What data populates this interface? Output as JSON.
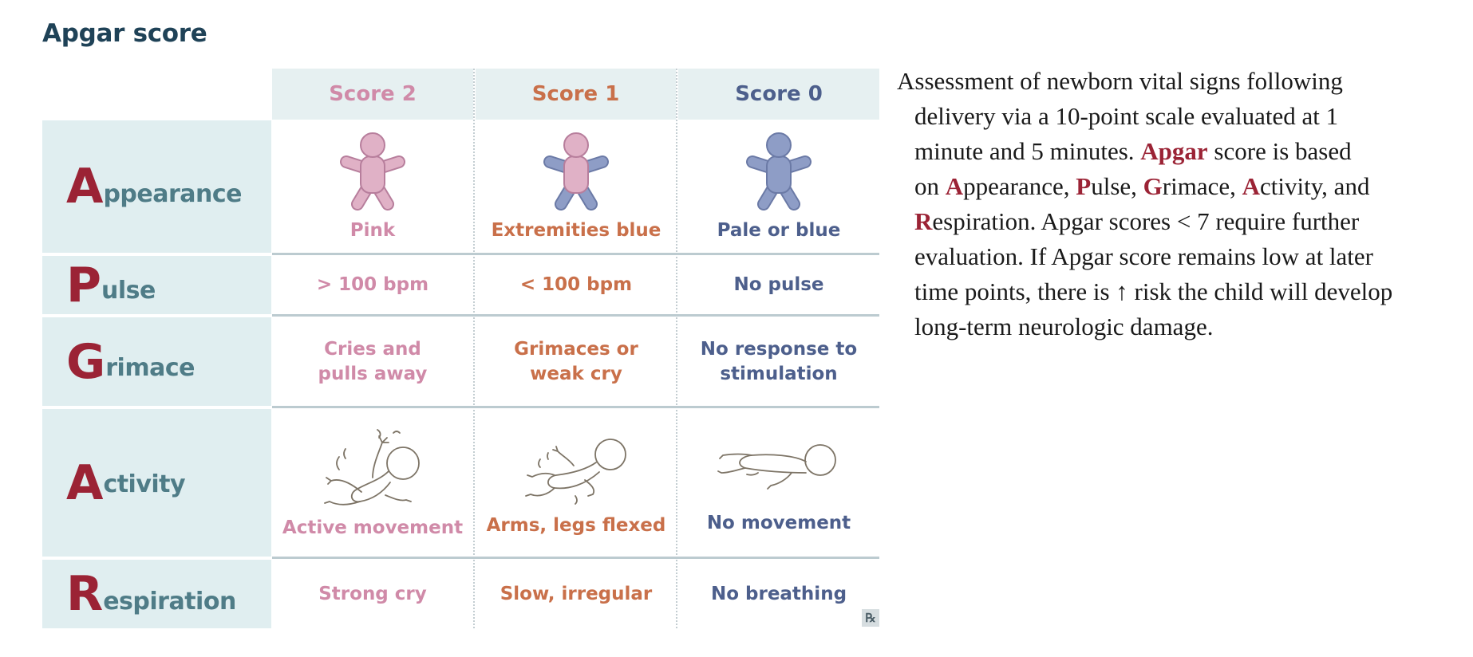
{
  "title": "Apgar score",
  "headers": {
    "score2": "Score 2",
    "score1": "Score 1",
    "score0": "Score 0"
  },
  "colors": {
    "score2": "#d08aa8",
    "score1": "#c9704a",
    "score0": "#4d5f8c",
    "letter": "#9b2335",
    "label": "#4f7c87"
  },
  "rows": {
    "appearance": {
      "initial": "A",
      "rest": "ppearance",
      "score2": "Pink",
      "score1": "Extremities blue",
      "score0": "Pale or blue"
    },
    "pulse": {
      "initial": "P",
      "rest": "ulse",
      "score2": "> 100 bpm",
      "score1": "< 100 bpm",
      "score0": "No pulse"
    },
    "grimace": {
      "initial": "G",
      "rest": "rimace",
      "score2_l1": "Cries and",
      "score2_l2": "pulls away",
      "score1_l1": "Grimaces or",
      "score1_l2": "weak cry",
      "score0_l1": "No response to",
      "score0_l2": "stimulation"
    },
    "activity": {
      "initial": "A",
      "rest": "ctivity",
      "score2": "Active movement",
      "score1": "Arms, legs flexed",
      "score0": "No movement"
    },
    "respiration": {
      "initial": "R",
      "rest": "espiration",
      "score2": "Strong cry",
      "score1": "Slow, irregular",
      "score0": "No breathing"
    }
  },
  "rx_badge": "℞",
  "description": {
    "l1": "Assessment of newborn vital signs following",
    "l2": "delivery via a 10-point scale evaluated at 1",
    "l3a": "minute and 5 minutes. ",
    "l3b": "Apgar",
    "l3c": " score is based",
    "l4": {
      "p1": "on ",
      "a": "A",
      "p2": "ppearance, ",
      "p": "P",
      "p3": "ulse, ",
      "g": "G",
      "p4": "rimace, ",
      "a2": "A",
      "p5": "ctivity, and"
    },
    "l5a": "R",
    "l5b": "espiration. Apgar scores < 7 require further",
    "l6": "evaluation. If Apgar score remains low at later",
    "l7": "time points, there is ↑ risk the child will develop",
    "l8": "long-term neurologic damage."
  }
}
